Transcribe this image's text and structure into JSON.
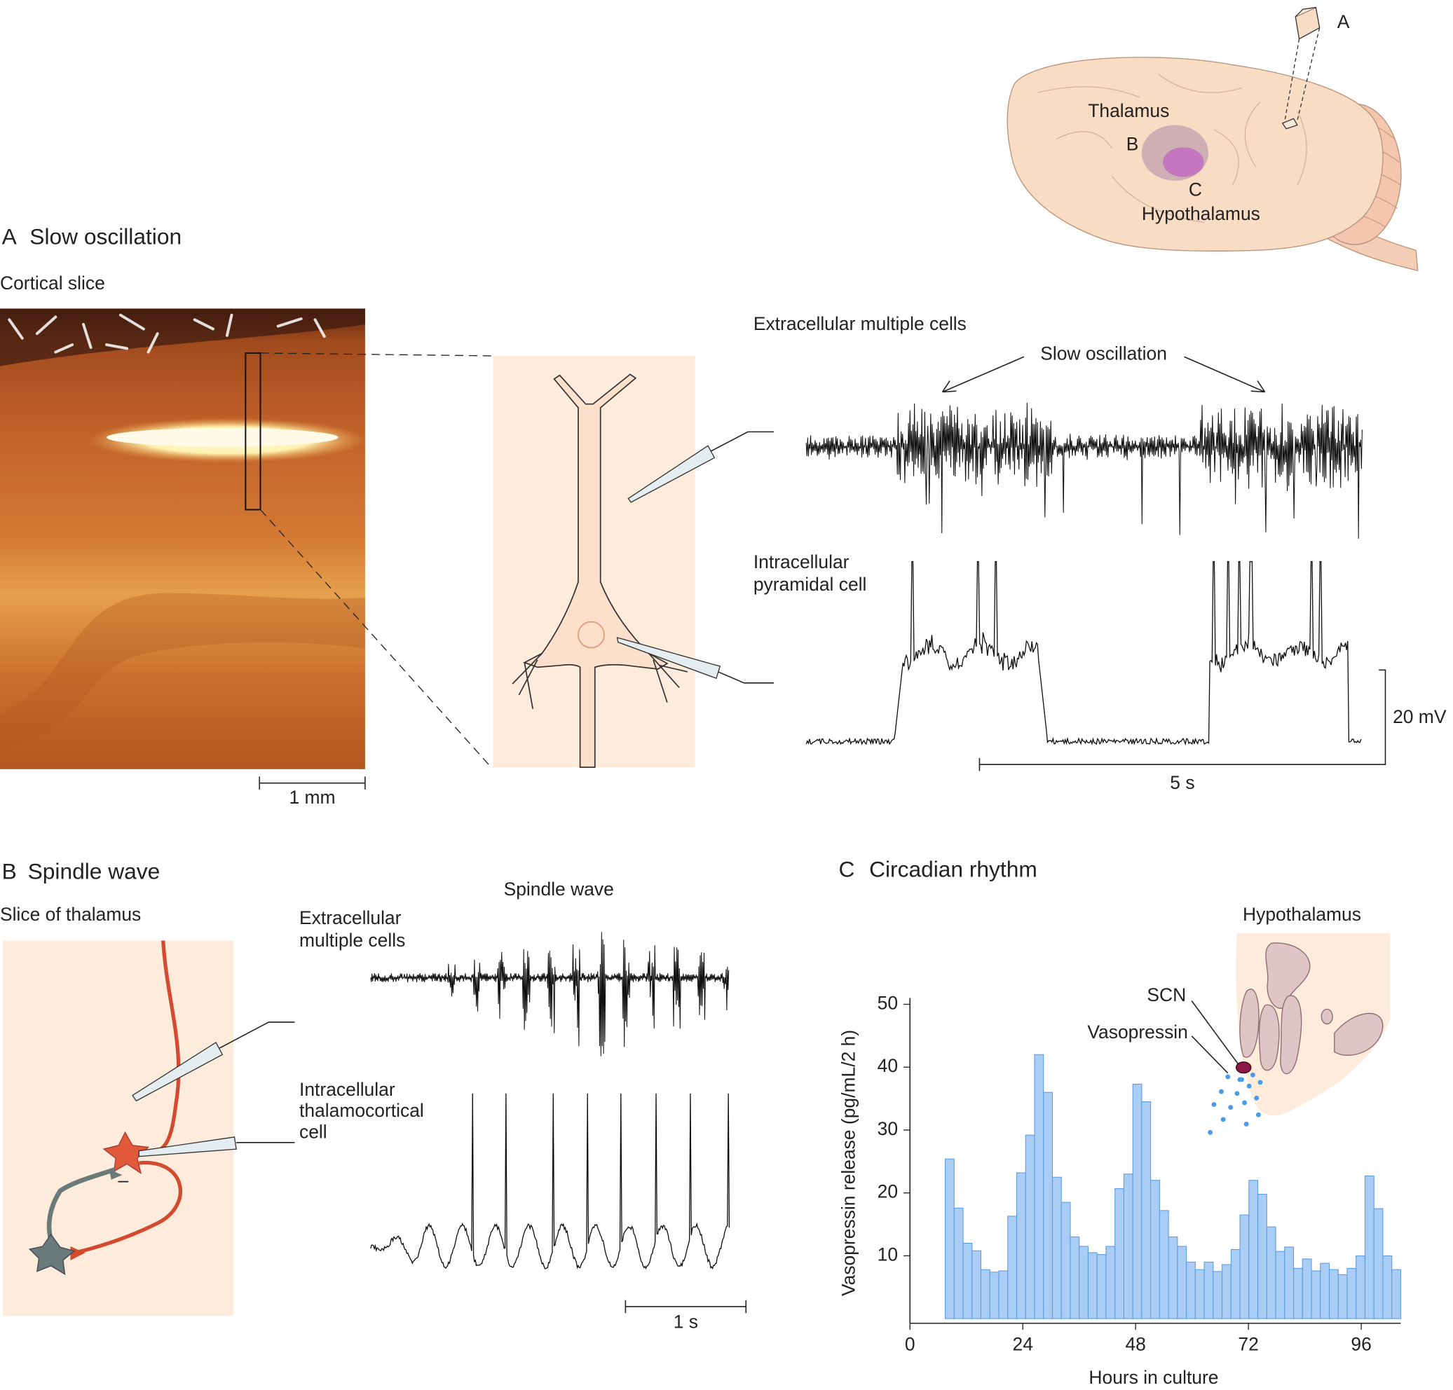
{
  "brain": {
    "cube_label": "A",
    "thalamus": "Thalamus",
    "thalamus_letter": "B",
    "hypothalamus_letter": "C",
    "hypothalamus": "Hypothalamus"
  },
  "panel_a": {
    "letter": "A",
    "title": "Slow oscillation",
    "slice_label": "Cortical slice",
    "scale_bar": "1 mm",
    "extracellular_label": "Extracellular multiple cells",
    "arrow_label": "Slow oscillation",
    "intracellular_label": [
      "Intracellular",
      "pyramidal cell"
    ],
    "voltage_scale": "20 mV",
    "time_scale": "5 s"
  },
  "panel_b": {
    "letter": "B",
    "title": "Spindle wave",
    "slice_label": "Slice of thalamus",
    "trace_title": "Spindle wave",
    "extracellular_label": [
      "Extracellular",
      "multiple cells"
    ],
    "intracellular_label": [
      "Intracellular",
      "thalamocortical",
      "cell"
    ],
    "inhibition_sign": "–",
    "time_scale": "1 s"
  },
  "panel_c": {
    "letter": "C",
    "title": "Circadian rhythm",
    "inset_title": "Hypothalamus",
    "scn_label": "SCN",
    "vasopressin_label": "Vasopressin"
  },
  "chart_data": {
    "type": "histogram",
    "xlabel": "Hours in culture",
    "ylabel": "Vasopressin release (pg/mL/2 h)",
    "color": "#a9cdf5",
    "bins": [
      7.5,
      9.4,
      11.3,
      13.2,
      15.1,
      17,
      18.9,
      20.8,
      22.7,
      24.6,
      26.5,
      28.4,
      30.3,
      32.2,
      34.1,
      36,
      37.9,
      39.8,
      41.7,
      43.6,
      45.5,
      47.4,
      49.3,
      51.2,
      53.1,
      55,
      56.9,
      58.8,
      60.7,
      62.6,
      64.5,
      66.4,
      68.3,
      70.2,
      72.1,
      74,
      75.9,
      77.8,
      79.7,
      81.6,
      83.5,
      85.4,
      87.3,
      89.2,
      91.1,
      93,
      94.9,
      96.8,
      98.7,
      100.6,
      102.5,
      104.4
    ],
    "values": [
      25.4,
      17.6,
      12,
      10.8,
      7.8,
      7.4,
      7.6,
      16.3,
      23.2,
      29.2,
      42,
      36,
      22.5,
      18.5,
      13,
      11.5,
      10.5,
      10.2,
      11.5,
      20.7,
      23,
      37.3,
      34.5,
      22,
      17.2,
      13,
      11.5,
      9,
      7.8,
      9,
      7.5,
      8.6,
      11,
      16.5,
      22,
      19.8,
      14.6,
      10.7,
      11.4,
      8,
      9.5,
      7.6,
      8.8,
      7.8,
      7,
      8,
      10,
      22.7,
      17.5,
      10,
      7.8
    ],
    "xlim": [
      0,
      104.4
    ],
    "ylim": [
      0,
      51
    ],
    "xticks": [
      0,
      24,
      48,
      72,
      96
    ],
    "yticks": [
      10,
      20,
      30,
      40,
      50
    ]
  }
}
